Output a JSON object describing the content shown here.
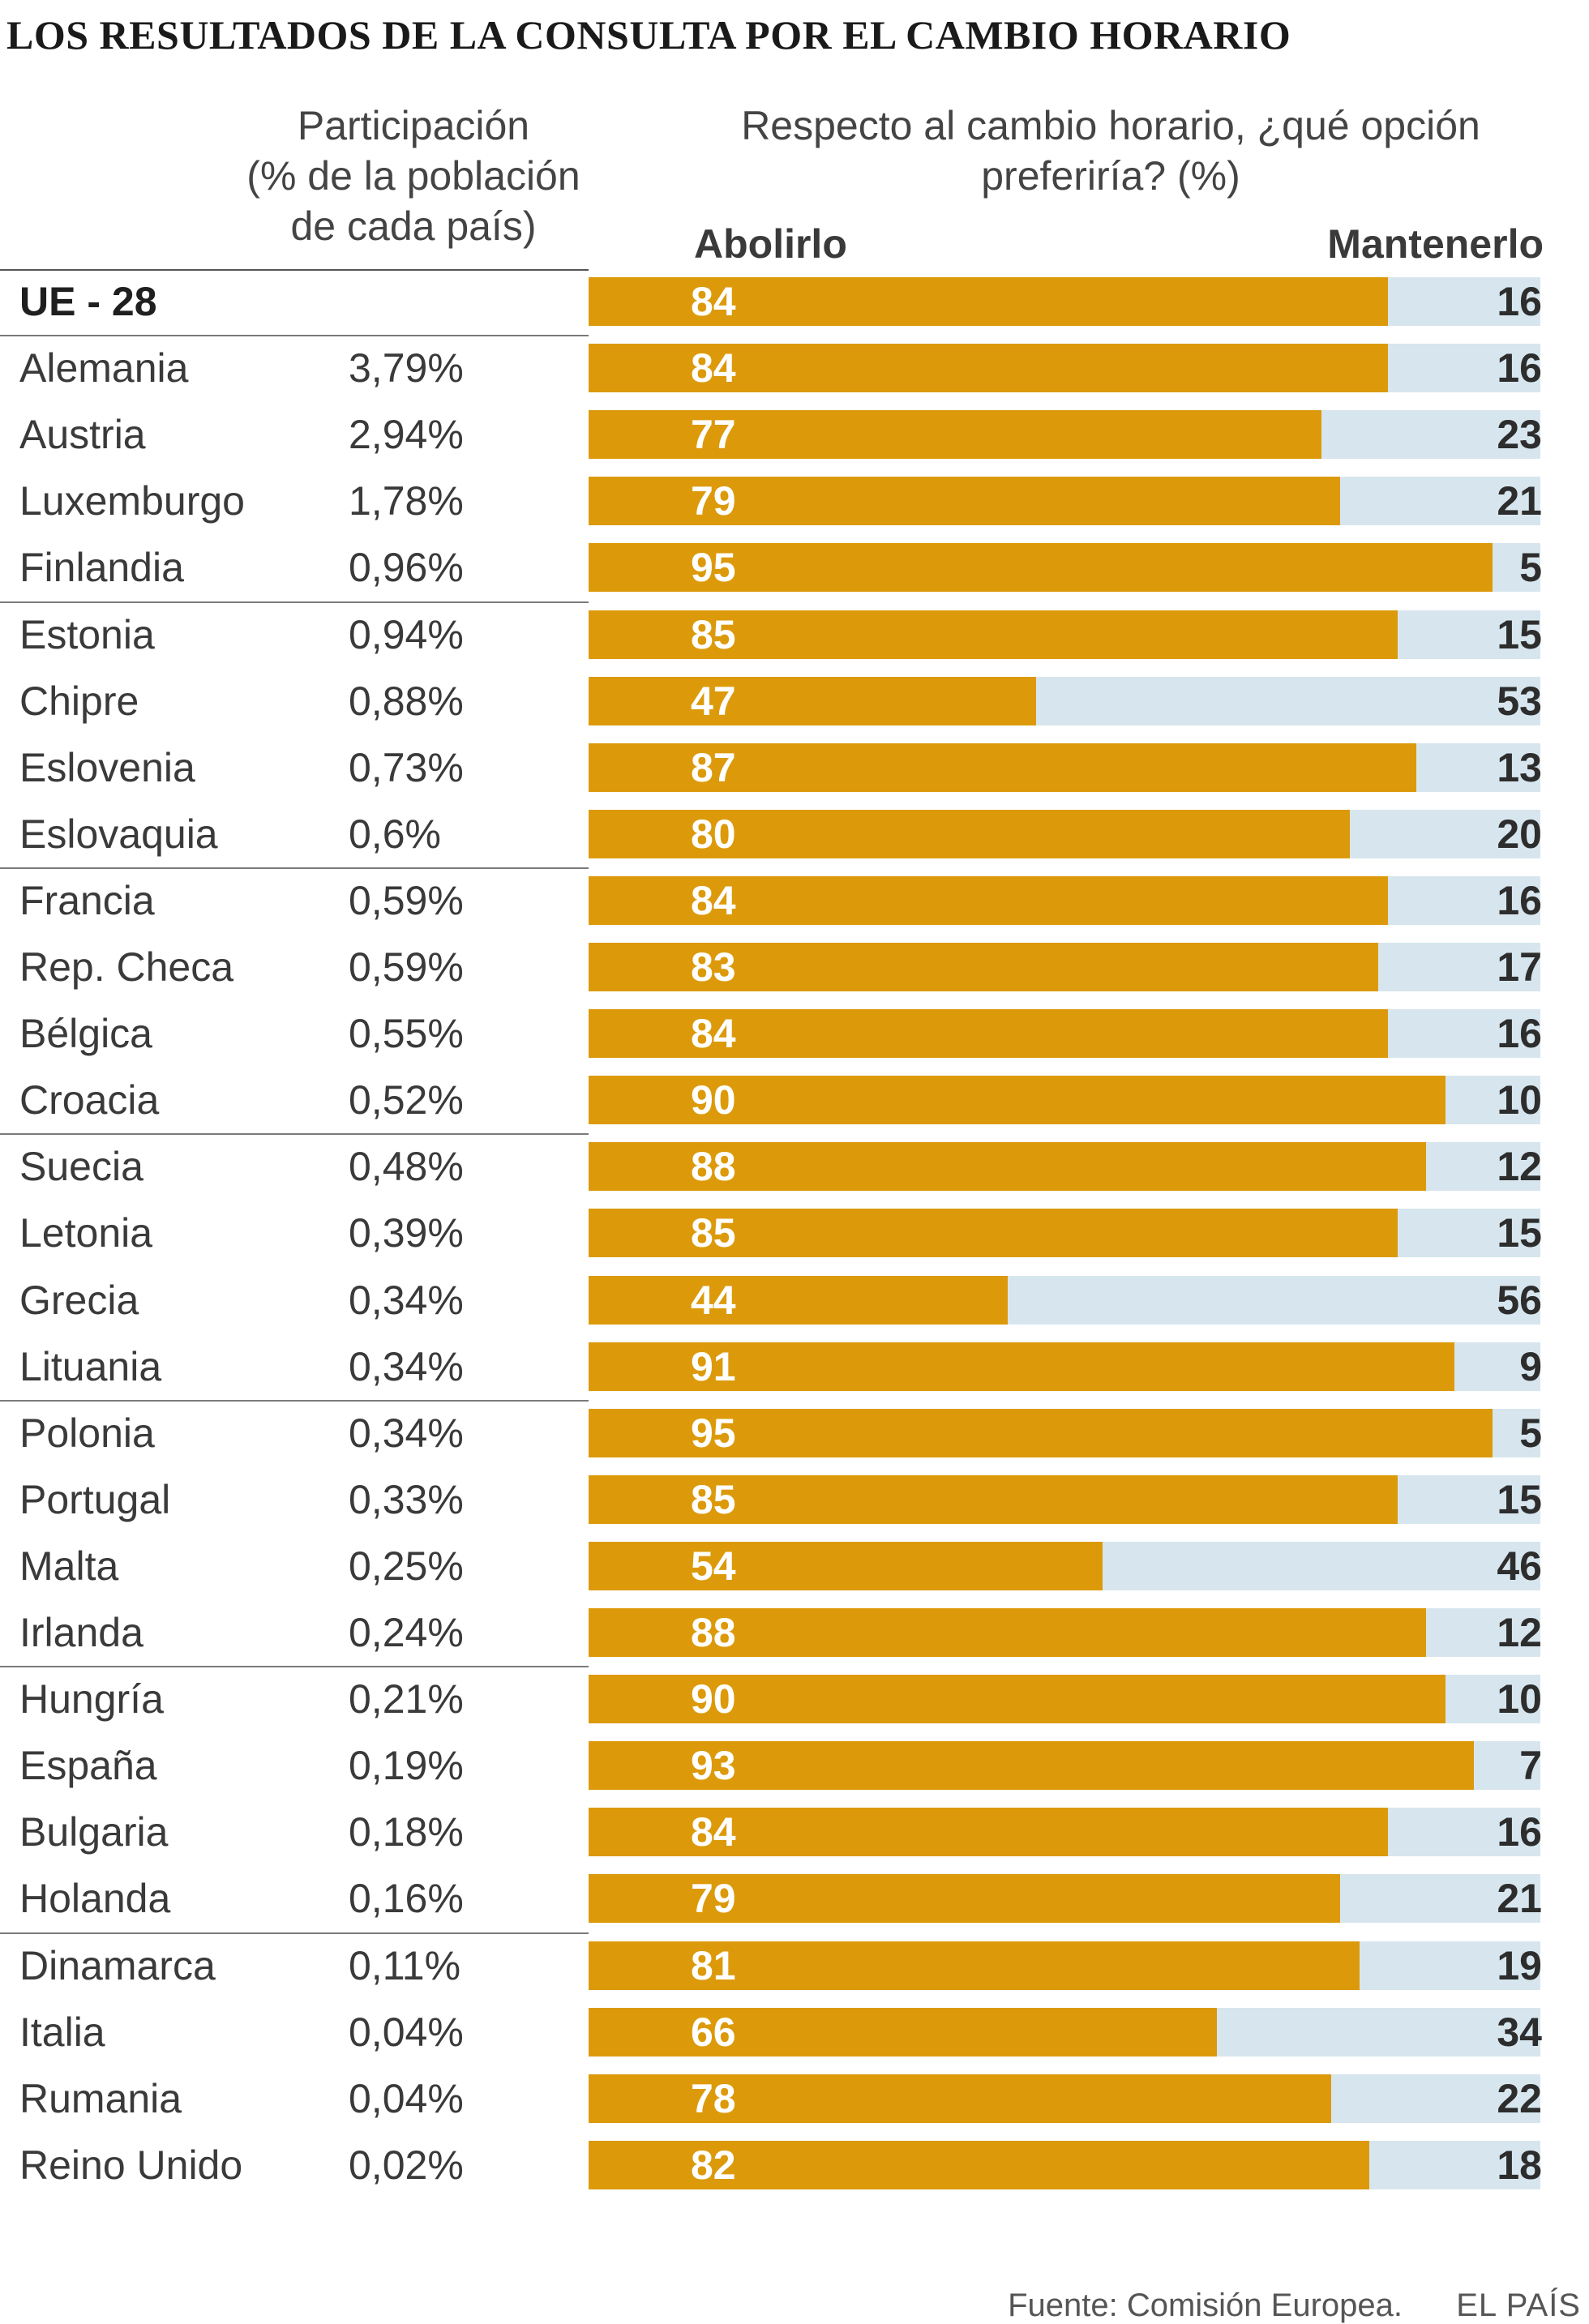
{
  "title": "LOS RESULTADOS DE LA CONSULTA POR EL CAMBIO HORARIO",
  "participation_header": [
    "Participación",
    "(% de la población",
    "de cada país)"
  ],
  "option_header": [
    "Respecto al cambio horario, ¿qué opción",
    "preferiría? (%)"
  ],
  "abolish_label": "Abolirlo",
  "keep_label": "Mantenerlo",
  "source": "Fuente: Comisión Europea.",
  "brand": "EL PAÍS",
  "colors": {
    "abolish": "#dc9a0b",
    "keep": "#d7e6ee"
  },
  "chart_data": {
    "type": "bar",
    "orientation": "horizontal",
    "stacked": true,
    "title": "LOS RESULTADOS DE LA CONSULTA POR EL CAMBIO HORARIO",
    "xlim": [
      0,
      100
    ],
    "series": [
      {
        "name": "Abolirlo",
        "values": [
          84,
          84,
          77,
          79,
          95,
          85,
          47,
          87,
          80,
          84,
          83,
          84,
          90,
          88,
          85,
          44,
          91,
          95,
          85,
          54,
          88,
          90,
          93,
          84,
          79,
          81,
          66,
          78,
          82
        ]
      },
      {
        "name": "Mantenerlo",
        "values": [
          16,
          16,
          23,
          21,
          5,
          15,
          53,
          13,
          20,
          16,
          17,
          16,
          10,
          12,
          15,
          56,
          9,
          5,
          15,
          46,
          12,
          10,
          7,
          16,
          21,
          19,
          34,
          22,
          18
        ]
      }
    ],
    "rows": [
      {
        "country": "UE - 28",
        "participation": "",
        "abolish": 84,
        "keep": 16
      },
      {
        "country": "Alemania",
        "participation": "3,79%",
        "abolish": 84,
        "keep": 16
      },
      {
        "country": "Austria",
        "participation": "2,94%",
        "abolish": 77,
        "keep": 23
      },
      {
        "country": "Luxemburgo",
        "participation": "1,78%",
        "abolish": 79,
        "keep": 21
      },
      {
        "country": "Finlandia",
        "participation": "0,96%",
        "abolish": 95,
        "keep": 5
      },
      {
        "country": "Estonia",
        "participation": "0,94%",
        "abolish": 85,
        "keep": 15
      },
      {
        "country": "Chipre",
        "participation": "0,88%",
        "abolish": 47,
        "keep": 53
      },
      {
        "country": "Eslovenia",
        "participation": "0,73%",
        "abolish": 87,
        "keep": 13
      },
      {
        "country": "Eslovaquia",
        "participation": "0,6%",
        "abolish": 80,
        "keep": 20
      },
      {
        "country": "Francia",
        "participation": "0,59%",
        "abolish": 84,
        "keep": 16
      },
      {
        "country": "Rep. Checa",
        "participation": "0,59%",
        "abolish": 83,
        "keep": 17
      },
      {
        "country": "Bélgica",
        "participation": "0,55%",
        "abolish": 84,
        "keep": 16
      },
      {
        "country": "Croacia",
        "participation": "0,52%",
        "abolish": 90,
        "keep": 10
      },
      {
        "country": "Suecia",
        "participation": "0,48%",
        "abolish": 88,
        "keep": 12
      },
      {
        "country": "Letonia",
        "participation": "0,39%",
        "abolish": 85,
        "keep": 15
      },
      {
        "country": "Grecia",
        "participation": "0,34%",
        "abolish": 44,
        "keep": 56
      },
      {
        "country": "Lituania",
        "participation": "0,34%",
        "abolish": 91,
        "keep": 9
      },
      {
        "country": "Polonia",
        "participation": "0,34%",
        "abolish": 95,
        "keep": 5
      },
      {
        "country": "Portugal",
        "participation": "0,33%",
        "abolish": 85,
        "keep": 15
      },
      {
        "country": "Malta",
        "participation": "0,25%",
        "abolish": 54,
        "keep": 46
      },
      {
        "country": "Irlanda",
        "participation": "0,24%",
        "abolish": 88,
        "keep": 12
      },
      {
        "country": "Hungría",
        "participation": "0,21%",
        "abolish": 90,
        "keep": 10
      },
      {
        "country": "España",
        "participation": "0,19%",
        "abolish": 93,
        "keep": 7
      },
      {
        "country": "Bulgaria",
        "participation": "0,18%",
        "abolish": 84,
        "keep": 16
      },
      {
        "country": "Holanda",
        "participation": "0,16%",
        "abolish": 79,
        "keep": 21
      },
      {
        "country": "Dinamarca",
        "participation": "0,11%",
        "abolish": 81,
        "keep": 19
      },
      {
        "country": "Italia",
        "participation": "0,04%",
        "abolish": 66,
        "keep": 34
      },
      {
        "country": "Rumania",
        "participation": "0,04%",
        "abolish": 78,
        "keep": 22
      },
      {
        "country": "Reino Unido",
        "participation": "0,02%",
        "abolish": 82,
        "keep": 18
      }
    ]
  }
}
